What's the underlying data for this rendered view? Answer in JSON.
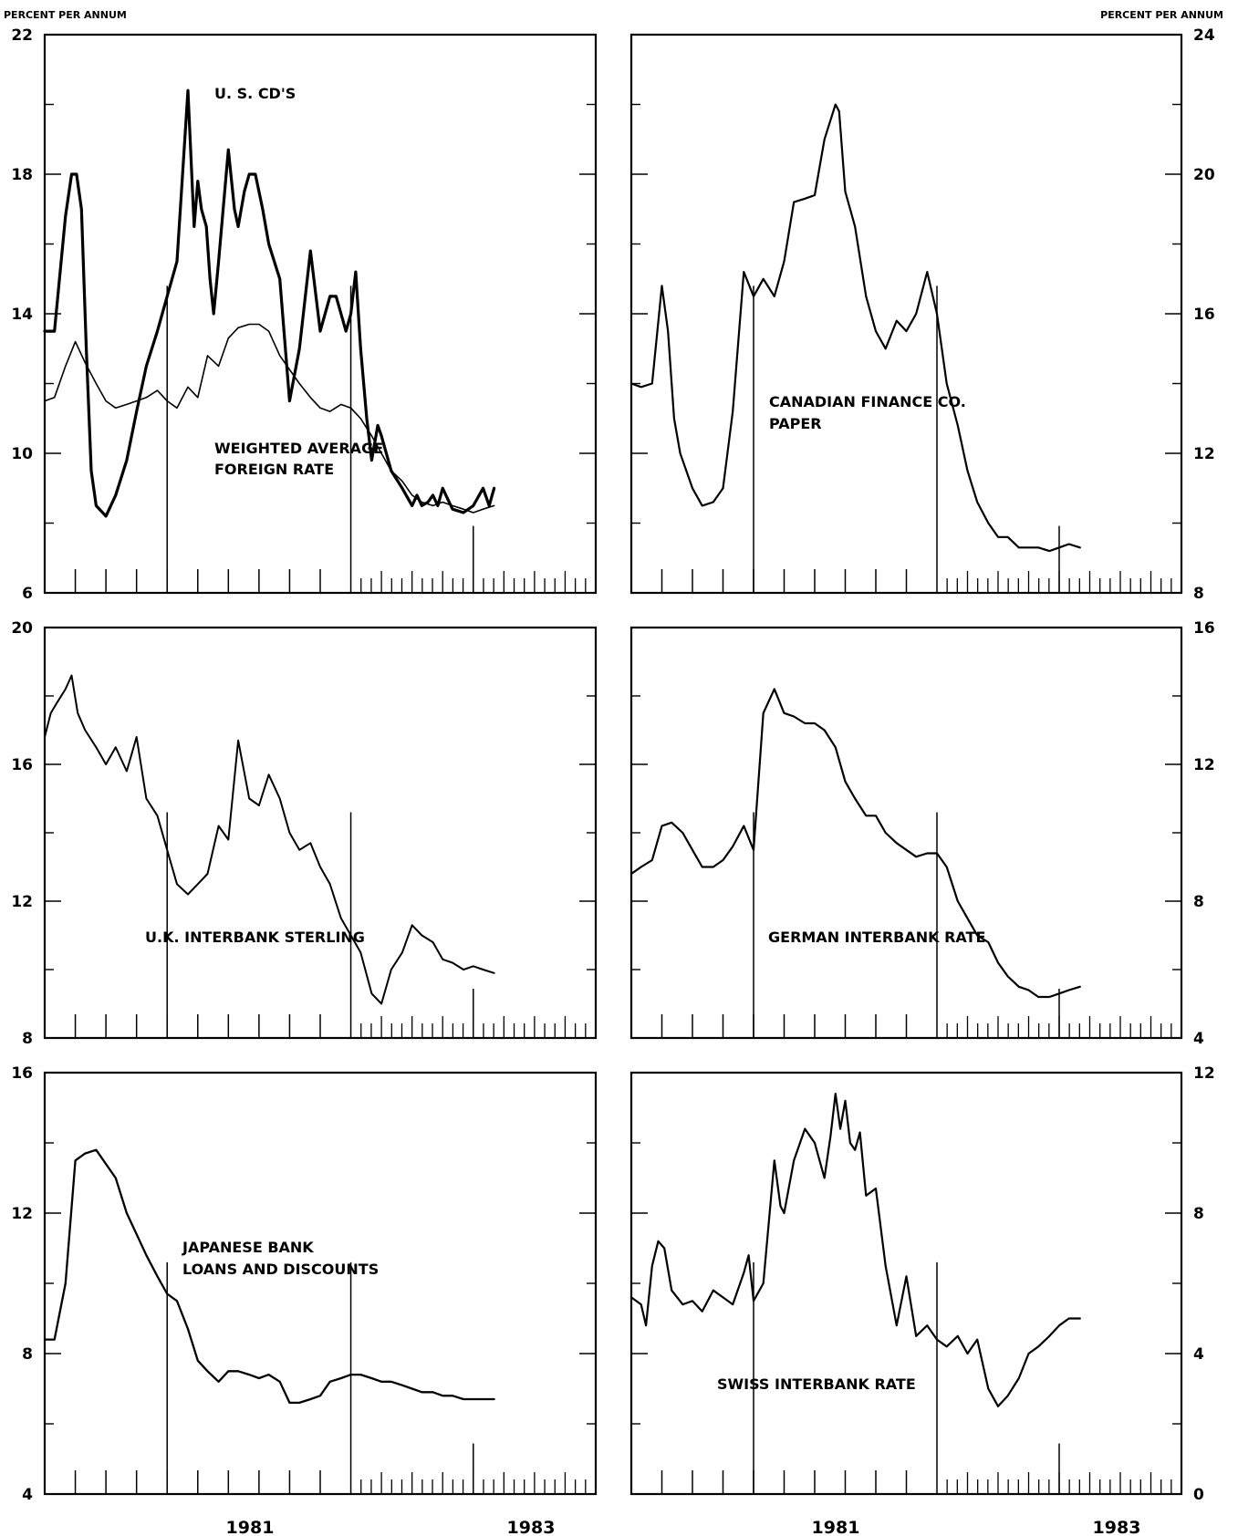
{
  "y_unit_left": "PERCENT PER ANNUM",
  "y_unit_right": "PERCENT PER ANNUM",
  "x_year_labels": [
    "1981",
    "1983"
  ],
  "chart_data": [
    {
      "type": "line",
      "position": "top-left",
      "ylim": [
        6,
        22
      ],
      "yticks": [
        "6",
        "10",
        "14",
        "18",
        "22"
      ],
      "xlim": [
        1979.5,
        1984.0
      ],
      "series": [
        {
          "name": "U. S. CD'S",
          "x": [
            1979.5,
            1979.58,
            1979.67,
            1979.72,
            1979.76,
            1979.8,
            1979.84,
            1979.88,
            1979.92,
            1980.0,
            1980.08,
            1980.17,
            1980.25,
            1980.33,
            1980.42,
            1980.5,
            1980.58,
            1980.67,
            1980.72,
            1980.75,
            1980.78,
            1980.82,
            1980.85,
            1980.88,
            1980.92,
            1981.0,
            1981.05,
            1981.08,
            1981.13,
            1981.17,
            1981.22,
            1981.28,
            1981.33,
            1981.42,
            1981.5,
            1981.58,
            1981.67,
            1981.75,
            1981.83,
            1981.88,
            1981.92,
            1981.96,
            1982.0,
            1982.04,
            1982.08,
            1982.13,
            1982.17,
            1982.22,
            1982.25,
            1982.33,
            1982.42,
            1982.5,
            1982.54,
            1982.58,
            1982.63,
            1982.67,
            1982.71,
            1982.75,
            1982.83,
            1982.92,
            1983.0,
            1983.08,
            1983.13,
            1983.17
          ],
          "values": [
            13.5,
            13.5,
            16.8,
            18.0,
            18.0,
            17.0,
            13.0,
            9.5,
            8.5,
            8.2,
            8.8,
            9.8,
            11.2,
            12.5,
            13.5,
            14.5,
            15.5,
            20.4,
            16.5,
            17.8,
            17.0,
            16.5,
            15.0,
            14.0,
            15.5,
            18.7,
            17.0,
            16.5,
            17.5,
            18.0,
            18.0,
            17.0,
            16.0,
            15.0,
            11.5,
            13.0,
            15.8,
            13.5,
            14.5,
            14.5,
            14.0,
            13.5,
            14.0,
            15.2,
            13.0,
            11.0,
            9.8,
            10.8,
            10.5,
            9.5,
            9.0,
            8.5,
            8.8,
            8.5,
            8.6,
            8.8,
            8.5,
            9.0,
            8.4,
            8.3,
            8.5,
            9.0,
            8.5,
            9.0
          ]
        },
        {
          "name": "WEIGHTED AVERAGE FOREIGN RATE",
          "x": [
            1979.5,
            1979.58,
            1979.67,
            1979.75,
            1979.83,
            1979.92,
            1980.0,
            1980.08,
            1980.17,
            1980.25,
            1980.33,
            1980.42,
            1980.5,
            1980.58,
            1980.67,
            1980.75,
            1980.83,
            1980.92,
            1981.0,
            1981.08,
            1981.17,
            1981.25,
            1981.33,
            1981.42,
            1981.5,
            1981.58,
            1981.67,
            1981.75,
            1981.83,
            1981.92,
            1982.0,
            1982.08,
            1982.17,
            1982.25,
            1982.33,
            1982.42,
            1982.5,
            1982.58,
            1982.67,
            1982.75,
            1982.83,
            1982.92,
            1983.0,
            1983.08,
            1983.17
          ],
          "values": [
            11.5,
            11.6,
            12.5,
            13.2,
            12.6,
            12.0,
            11.5,
            11.3,
            11.4,
            11.5,
            11.6,
            11.8,
            11.5,
            11.3,
            11.9,
            11.6,
            12.8,
            12.5,
            13.3,
            13.6,
            13.7,
            13.7,
            13.5,
            12.8,
            12.4,
            12.0,
            11.6,
            11.3,
            11.2,
            11.4,
            11.3,
            11.0,
            10.5,
            10.0,
            9.5,
            9.2,
            8.8,
            8.6,
            8.5,
            8.6,
            8.5,
            8.4,
            8.3,
            8.4,
            8.5
          ]
        }
      ],
      "annotations": [
        "U. S. CD'S",
        "WEIGHTED AVERAGE",
        "FOREIGN RATE"
      ]
    },
    {
      "type": "line",
      "position": "top-right",
      "ylim": [
        8,
        24
      ],
      "yticks": [
        "8",
        "12",
        "16",
        "20",
        "24"
      ],
      "xlim": [
        1979.5,
        1984.0
      ],
      "series": [
        {
          "name": "CANADIAN FINANCE CO. PAPER",
          "x": [
            1979.5,
            1979.58,
            1979.67,
            1979.75,
            1979.8,
            1979.85,
            1979.9,
            1980.0,
            1980.08,
            1980.17,
            1980.25,
            1980.33,
            1980.42,
            1980.5,
            1980.58,
            1980.67,
            1980.75,
            1980.83,
            1980.92,
            1981.0,
            1981.08,
            1981.17,
            1981.2,
            1981.25,
            1981.29,
            1981.33,
            1981.42,
            1981.5,
            1981.58,
            1981.67,
            1981.75,
            1981.83,
            1981.92,
            1982.0,
            1982.08,
            1982.17,
            1982.25,
            1982.33,
            1982.42,
            1982.5,
            1982.58,
            1982.67,
            1982.75,
            1982.83,
            1982.92,
            1983.0,
            1983.08,
            1983.17
          ],
          "values": [
            14.0,
            13.9,
            14.0,
            16.8,
            15.5,
            13.0,
            12.0,
            11.0,
            10.5,
            10.6,
            11.0,
            13.2,
            17.2,
            16.5,
            17.0,
            16.5,
            17.5,
            19.2,
            19.3,
            19.4,
            21.0,
            22.0,
            21.8,
            19.5,
            19.0,
            18.5,
            16.5,
            15.5,
            15.0,
            15.8,
            15.5,
            16.0,
            17.2,
            16.0,
            14.0,
            12.8,
            11.5,
            10.6,
            10.0,
            9.6,
            9.6,
            9.3,
            9.3,
            9.3,
            9.2,
            9.3,
            9.4,
            9.3
          ]
        }
      ],
      "annotations": [
        "CANADIAN FINANCE CO.",
        "PAPER"
      ]
    },
    {
      "type": "line",
      "position": "middle-left",
      "ylim": [
        8,
        20
      ],
      "yticks": [
        "8",
        "12",
        "16",
        "20"
      ],
      "xlim": [
        1979.5,
        1984.0
      ],
      "series": [
        {
          "name": "U.K. INTERBANK STERLING",
          "x": [
            1979.5,
            1979.55,
            1979.6,
            1979.67,
            1979.72,
            1979.77,
            1979.83,
            1979.92,
            1980.0,
            1980.08,
            1980.17,
            1980.25,
            1980.33,
            1980.42,
            1980.5,
            1980.58,
            1980.67,
            1980.75,
            1980.83,
            1980.92,
            1981.0,
            1981.08,
            1981.17,
            1981.25,
            1981.33,
            1981.42,
            1981.5,
            1981.58,
            1981.67,
            1981.75,
            1981.83,
            1981.92,
            1982.0,
            1982.08,
            1982.17,
            1982.25,
            1982.33,
            1982.42,
            1982.5,
            1982.58,
            1982.67,
            1982.75,
            1982.83,
            1982.92,
            1983.0,
            1983.08,
            1983.17
          ],
          "values": [
            16.8,
            17.5,
            17.8,
            18.2,
            18.6,
            17.5,
            17.0,
            16.5,
            16.0,
            16.5,
            15.8,
            16.8,
            15.0,
            14.5,
            13.5,
            12.5,
            12.2,
            12.5,
            12.8,
            14.2,
            13.8,
            16.7,
            15.0,
            14.8,
            15.7,
            15.0,
            14.0,
            13.5,
            13.7,
            13.0,
            12.5,
            11.5,
            11.0,
            10.5,
            9.3,
            9.0,
            10.0,
            10.5,
            11.3,
            11.0,
            10.8,
            10.3,
            10.2,
            10.0,
            10.1,
            10.0,
            9.9
          ]
        }
      ],
      "annotations": [
        "U.K. INTERBANK STERLING"
      ]
    },
    {
      "type": "line",
      "position": "middle-right",
      "ylim": [
        4,
        16
      ],
      "yticks": [
        "4",
        "8",
        "12",
        "16"
      ],
      "xlim": [
        1979.5,
        1984.0
      ],
      "series": [
        {
          "name": "GERMAN INTERBANK RATE",
          "x": [
            1979.5,
            1979.58,
            1979.67,
            1979.75,
            1979.83,
            1979.92,
            1980.0,
            1980.08,
            1980.17,
            1980.25,
            1980.33,
            1980.42,
            1980.5,
            1980.58,
            1980.67,
            1980.75,
            1980.83,
            1980.92,
            1981.0,
            1981.08,
            1981.17,
            1981.25,
            1981.33,
            1981.42,
            1981.5,
            1981.58,
            1981.67,
            1981.75,
            1981.83,
            1981.92,
            1982.0,
            1982.08,
            1982.17,
            1982.25,
            1982.33,
            1982.42,
            1982.5,
            1982.58,
            1982.67,
            1982.75,
            1982.83,
            1982.92,
            1983.0,
            1983.08,
            1983.17
          ],
          "values": [
            8.8,
            9.0,
            9.2,
            10.2,
            10.3,
            10.0,
            9.5,
            9.0,
            9.0,
            9.2,
            9.6,
            10.2,
            9.5,
            13.5,
            14.2,
            13.5,
            13.4,
            13.2,
            13.2,
            13.0,
            12.5,
            11.5,
            11.0,
            10.5,
            10.5,
            10.0,
            9.7,
            9.5,
            9.3,
            9.4,
            9.4,
            9.0,
            8.0,
            7.5,
            7.0,
            6.8,
            6.2,
            5.8,
            5.5,
            5.4,
            5.2,
            5.2,
            5.3,
            5.4,
            5.5
          ]
        }
      ],
      "annotations": [
        "GERMAN INTERBANK RATE"
      ]
    },
    {
      "type": "line",
      "position": "bottom-left",
      "ylim": [
        4,
        16
      ],
      "yticks": [
        "4",
        "8",
        "12",
        "16"
      ],
      "xlim": [
        1979.5,
        1984.0
      ],
      "series": [
        {
          "name": "JAPANESE BANK LOANS AND DISCOUNTS",
          "x": [
            1979.5,
            1979.58,
            1979.67,
            1979.75,
            1979.83,
            1979.92,
            1980.0,
            1980.08,
            1980.17,
            1980.25,
            1980.33,
            1980.42,
            1980.5,
            1980.58,
            1980.67,
            1980.75,
            1980.83,
            1980.92,
            1981.0,
            1981.08,
            1981.17,
            1981.25,
            1981.33,
            1981.42,
            1981.5,
            1981.58,
            1981.67,
            1981.75,
            1981.83,
            1981.92,
            1982.0,
            1982.08,
            1982.17,
            1982.25,
            1982.33,
            1982.42,
            1982.5,
            1982.58,
            1982.67,
            1982.75,
            1982.83,
            1982.92,
            1983.0,
            1983.08,
            1983.17
          ],
          "values": [
            8.4,
            8.4,
            10.0,
            13.5,
            13.7,
            13.8,
            13.4,
            13.0,
            12.0,
            11.4,
            10.8,
            10.2,
            9.7,
            9.5,
            8.7,
            7.8,
            7.5,
            7.2,
            7.5,
            7.5,
            7.4,
            7.3,
            7.4,
            7.2,
            6.6,
            6.6,
            6.7,
            6.8,
            7.2,
            7.3,
            7.4,
            7.4,
            7.3,
            7.2,
            7.2,
            7.1,
            7.0,
            6.9,
            6.9,
            6.8,
            6.8,
            6.7,
            6.7,
            6.7,
            6.7
          ]
        }
      ],
      "annotations": [
        "JAPANESE BANK",
        "LOANS AND DISCOUNTS"
      ]
    },
    {
      "type": "line",
      "position": "bottom-right",
      "ylim": [
        0,
        12
      ],
      "yticks": [
        "0",
        "4",
        "8",
        "12"
      ],
      "xlim": [
        1979.5,
        1984.0
      ],
      "series": [
        {
          "name": "SWISS INTERBANK RATE",
          "x": [
            1979.5,
            1979.58,
            1979.62,
            1979.67,
            1979.72,
            1979.77,
            1979.83,
            1979.92,
            1980.0,
            1980.08,
            1980.17,
            1980.25,
            1980.33,
            1980.42,
            1980.46,
            1980.5,
            1980.58,
            1980.67,
            1980.72,
            1980.75,
            1980.83,
            1980.92,
            1981.0,
            1981.08,
            1981.13,
            1981.17,
            1981.21,
            1981.25,
            1981.29,
            1981.33,
            1981.37,
            1981.42,
            1981.5,
            1981.58,
            1981.67,
            1981.75,
            1981.83,
            1981.92,
            1982.0,
            1982.08,
            1982.17,
            1982.25,
            1982.33,
            1982.42,
            1982.5,
            1982.58,
            1982.67,
            1982.75,
            1982.83,
            1982.92,
            1983.0,
            1983.08,
            1983.17
          ],
          "values": [
            5.6,
            5.4,
            4.8,
            6.5,
            7.2,
            7.0,
            5.8,
            5.4,
            5.5,
            5.2,
            5.8,
            5.6,
            5.4,
            6.3,
            6.8,
            5.5,
            6.0,
            9.5,
            8.2,
            8.0,
            9.5,
            10.4,
            10.0,
            9.0,
            10.2,
            11.4,
            10.4,
            11.2,
            10.0,
            9.8,
            10.3,
            8.5,
            8.7,
            6.5,
            4.8,
            6.2,
            4.5,
            4.8,
            4.4,
            4.2,
            4.5,
            4.0,
            4.4,
            3.0,
            2.5,
            2.8,
            3.3,
            4.0,
            4.2,
            4.5,
            4.8,
            5.0,
            5.0
          ]
        }
      ],
      "annotations": [
        "SWISS INTERBANK RATE"
      ]
    }
  ]
}
